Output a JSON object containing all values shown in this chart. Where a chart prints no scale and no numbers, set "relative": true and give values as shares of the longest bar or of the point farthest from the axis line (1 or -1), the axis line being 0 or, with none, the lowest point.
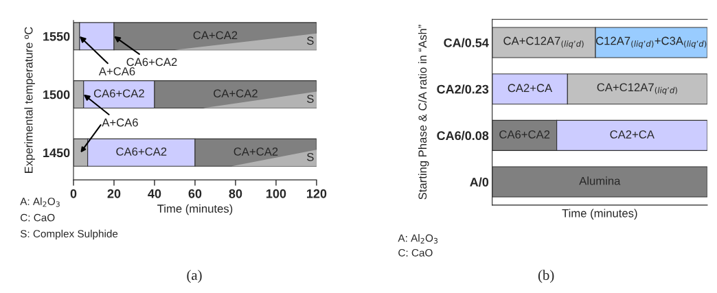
{
  "chart_data": [
    {
      "type": "bar",
      "orientation": "horizontal",
      "stacked": true,
      "xlabel": "Time (minutes)",
      "ylabel": "Experimental temperature ºC",
      "categories": [
        "1550",
        "1500",
        "1450"
      ],
      "series": [
        {
          "color": "#b3b3b3",
          "values": [
            3,
            5,
            7
          ]
        },
        {
          "color": "#ccccff",
          "values": [
            17,
            35,
            53
          ],
          "value_labels": [
            null,
            "CA6+CA2",
            "CA6+CA2"
          ]
        },
        {
          "color": "#808080",
          "values": [
            100,
            80,
            60
          ],
          "value_labels": [
            "CA+CA2",
            "CA+CA2",
            "CA+CA2"
          ]
        }
      ],
      "xlim": [
        0,
        120
      ],
      "xticks": [
        0,
        20,
        40,
        60,
        80,
        100,
        120
      ],
      "annotations": [
        "S",
        "S",
        "S",
        {
          "text": "A+CA6",
          "x": 3,
          "y": "1550"
        },
        {
          "text": "CA6+CA2",
          "x": 20,
          "y": "1550"
        },
        {
          "text": "A+CA6",
          "x": 5,
          "y": "1500"
        },
        "A: Al$_{2}$O$_{3}$",
        "C: CaO",
        "S: Complex Sulphide",
        "(a)"
      ]
    },
    {
      "type": "bar",
      "orientation": "horizontal",
      "stacked": true,
      "relative": true,
      "xlabel": "Time (minutes)",
      "ylabel": "Starting Phase & C/A ratio in “Ash”",
      "categories": [
        "CA/0.54",
        "CA2/0.23",
        "CA6/0.08",
        "A/0"
      ],
      "series": [
        {
          "colors": [
            "#c0c0c0",
            "#ccccff",
            "#808080",
            "#808080"
          ],
          "values": [
            0.48,
            0.35,
            0.3,
            1
          ]
        },
        {
          "colors": [
            "#99ccff",
            "#c0c0c0",
            "#ccccff",
            "#808080"
          ],
          "values": [
            0.52,
            0.65,
            0.7,
            null
          ]
        }
      ],
      "tick_labels": "y",
      "annotations": [
        "CA+C12A7$_{(liq’d)}$",
        "C12A7$_{(liq’d)}$+C3A$_{(liq’d)}$",
        "CA2+CA",
        "CA+C12A7$_{(liq’d)}$",
        "CA6+CA2",
        "CA2+CA",
        "Alumina",
        "A: Al$_{2}$O$_{3}$",
        "C: CaO",
        "(b)"
      ]
    }
  ]
}
